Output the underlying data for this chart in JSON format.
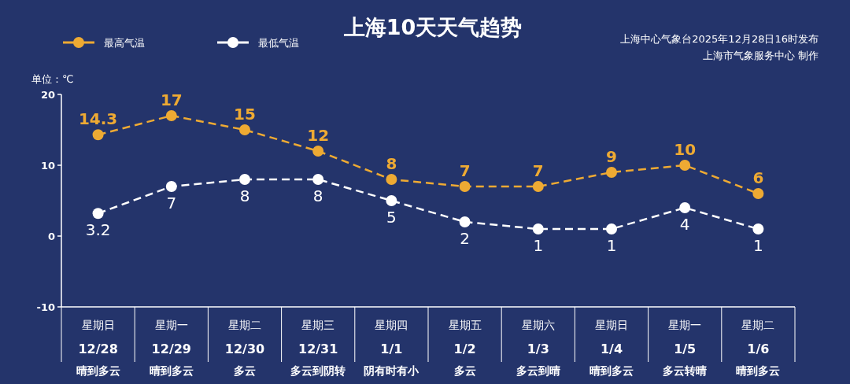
{
  "chart_data": {
    "type": "line",
    "title": "上海10天天气趋势",
    "ylabel": "单位：℃",
    "annotations": [
      "上海中心气象台2025年12月28日16时发布",
      "上海市气象服务中心 制作"
    ],
    "categories": [
      "星期日\n12/28\n晴到多云",
      "星期一\n12/29\n晴到多云",
      "星期二\n12/30\n多云",
      "星期三\n12/31\n多云到阴转",
      "星期四\n1/1\n阴有时有小",
      "星期五\n1/2\n多云",
      "星期六\n1/3\n多云到晴",
      "星期日\n1/4\n晴到多云",
      "星期一\n1/5\n多云转晴",
      "星期二\n1/6\n晴到多云"
    ],
    "series": [
      {
        "name": "最高气温",
        "color": "#eeaa33",
        "values": [
          14.3,
          17,
          15,
          12,
          8,
          7,
          7,
          9,
          10,
          6
        ]
      },
      {
        "name": "最低气温",
        "color": "#ffffff",
        "values": [
          3.2,
          7,
          8,
          8,
          5,
          2,
          1,
          1,
          4,
          1
        ]
      }
    ],
    "ylim": [
      -10,
      20
    ],
    "yticks": [
      -10,
      0,
      10,
      20
    ],
    "grid": false,
    "legend": "top left",
    "data_labels": true,
    "marker": "circle",
    "line_style": "dashed"
  }
}
